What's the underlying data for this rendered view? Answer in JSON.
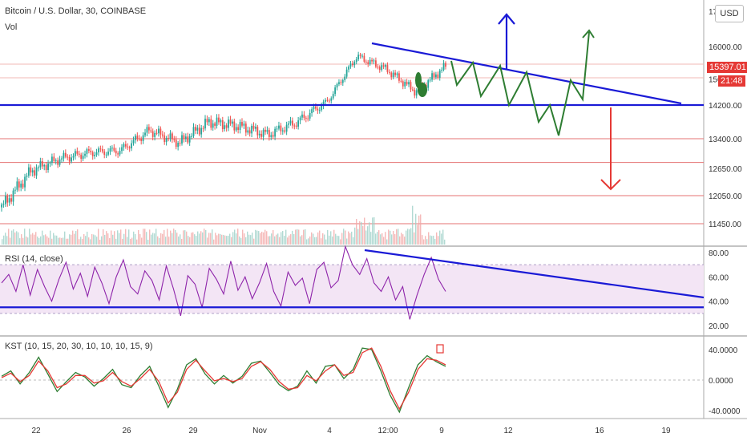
{
  "header": {
    "symbol_title": "Bitcoin / U.S. Dollar, 30, COINBASE",
    "volume_label": "Vol",
    "currency_button": "USD"
  },
  "price_tags": {
    "last_price": "15397.01",
    "countdown": "21:48"
  },
  "colors": {
    "trendline": "#1a1ad6",
    "projection_up": "#2e7d32",
    "target_up": "#1a1ad6",
    "target_down": "#e53935",
    "horizontal_level": "#e57373",
    "rsi_line": "#8e24aa",
    "rsi_band": "#f3e5f5",
    "kst_line": "#2e7d32",
    "kst_signal": "#e53935",
    "candle_up": "#26a69a",
    "candle_down": "#ef5350"
  },
  "chart_data": [
    {
      "type": "line",
      "pane": "price",
      "title": "Bitcoin / U.S. Dollar, 30, COINBASE",
      "x_ticks": [
        "22",
        "26",
        "29",
        "Nov",
        "4",
        "12:00",
        "9",
        "12",
        "16",
        "19"
      ],
      "y_ticks": [
        11450.0,
        12050.0,
        12650.0,
        13400.0,
        14200.0,
        15000.0,
        16000.0
      ],
      "ylim": [
        11200,
        17000
      ],
      "approx_close": [
        {
          "x": "Oct 20",
          "y": 11800
        },
        {
          "x": "Oct 21",
          "y": 12600
        },
        {
          "x": "Oct 22",
          "y": 12900
        },
        {
          "x": "Oct 24",
          "y": 13050
        },
        {
          "x": "Oct 26",
          "y": 13100
        },
        {
          "x": "Oct 27",
          "y": 13600
        },
        {
          "x": "Oct 29",
          "y": 13300
        },
        {
          "x": "Oct 31",
          "y": 13800
        },
        {
          "x": "Nov 1",
          "y": 13700
        },
        {
          "x": "Nov 3",
          "y": 13500
        },
        {
          "x": "Nov 4",
          "y": 13800
        },
        {
          "x": "Nov 5",
          "y": 14300
        },
        {
          "x": "Nov 6",
          "y": 15700
        },
        {
          "x": "Nov 7",
          "y": 15300
        },
        {
          "x": "Nov 8",
          "y": 14600
        },
        {
          "x": "Nov 9",
          "y": 15397
        }
      ],
      "horizontal_levels": [
        14200,
        13400,
        12800,
        12050,
        11450
      ],
      "last_price": 15397.01
    },
    {
      "type": "line",
      "pane": "rsi",
      "title": "RSI (14, close)",
      "y_ticks": [
        20.0,
        40.0,
        60.0,
        80.0
      ],
      "ylim": [
        15,
        85
      ],
      "band": [
        30,
        70
      ],
      "support_level": 35,
      "values": [
        55,
        62,
        48,
        70,
        45,
        66,
        52,
        40,
        58,
        72,
        50,
        63,
        44,
        68,
        55,
        38,
        60,
        74,
        52,
        46,
        65,
        57,
        41,
        69,
        50,
        28,
        61,
        54,
        35,
        67,
        58,
        46,
        73,
        49,
        60,
        42,
        55,
        71,
        48,
        36,
        64,
        53,
        59,
        38,
        66,
        72,
        51,
        57,
        85,
        70,
        62,
        75,
        55,
        48,
        60,
        41,
        52,
        25,
        45,
        62,
        76,
        58,
        48
      ]
    },
    {
      "type": "line",
      "pane": "kst",
      "title": "KST (10, 15, 20, 30, 10, 10, 10, 15, 9)",
      "y_ticks": [
        -40.0,
        0.0,
        40.0
      ],
      "ylim": [
        -45,
        50
      ],
      "series": [
        {
          "values": [
            5,
            12,
            -5,
            10,
            30,
            8,
            -15,
            -2,
            10,
            4,
            -8,
            2,
            14,
            -6,
            -10,
            6,
            18,
            -8,
            -36,
            -12,
            20,
            28,
            8,
            -5,
            6,
            -4,
            5,
            22,
            25,
            10,
            -6,
            -14,
            -8,
            12,
            -4,
            18,
            20,
            2,
            14,
            42,
            40,
            12,
            -20,
            -42,
            -10,
            20,
            32,
            24,
            18
          ]
        },
        {
          "values": [
            3,
            9,
            -2,
            6,
            25,
            12,
            -10,
            -5,
            6,
            6,
            -4,
            -1,
            10,
            -2,
            -8,
            2,
            14,
            -2,
            -30,
            -16,
            14,
            26,
            12,
            -1,
            2,
            -2,
            2,
            18,
            24,
            14,
            -2,
            -12,
            -10,
            6,
            -1,
            12,
            20,
            6,
            10,
            36,
            42,
            18,
            -14,
            -38,
            -16,
            14,
            28,
            26,
            20
          ]
        }
      ]
    }
  ]
}
